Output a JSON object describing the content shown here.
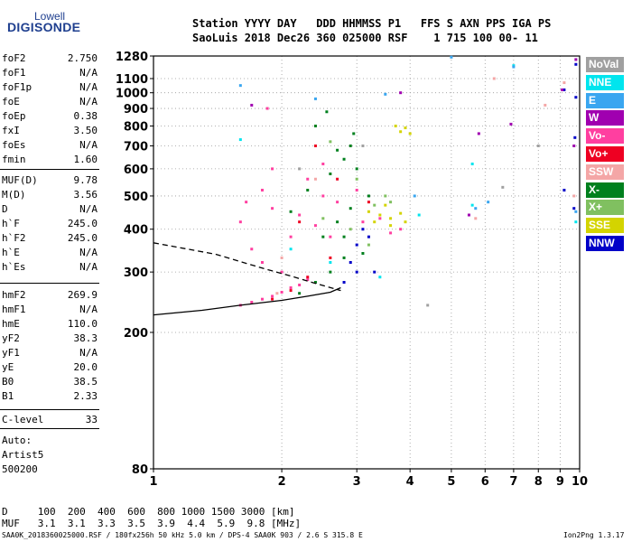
{
  "logo": {
    "top": "Lowell",
    "main": "DIGISONDE"
  },
  "header": {
    "line1": "Station YYYY DAY   DDD HHMMSS P1   FFS S AXN PPS IGA PS",
    "line2": "SaoLuis 2018 Dec26 360 025000 RSF    1 715 100 00- 11"
  },
  "params": [
    {
      "label": "foF2",
      "value": "2.750"
    },
    {
      "label": "foF1",
      "value": "N/A"
    },
    {
      "label": "foF1p",
      "value": "N/A"
    },
    {
      "label": "foE",
      "value": "N/A"
    },
    {
      "label": "foEp",
      "value": "0.38"
    },
    {
      "label": "fxI",
      "value": "3.50"
    },
    {
      "label": "foEs",
      "value": "N/A"
    },
    {
      "label": "fmin",
      "value": "1.60"
    },
    {
      "label": "MUF(D)",
      "value": "9.78"
    },
    {
      "label": "M(D)",
      "value": "3.56"
    },
    {
      "label": "D",
      "value": "N/A"
    },
    {
      "label": "h`F",
      "value": "245.0"
    },
    {
      "label": "h`F2",
      "value": "245.0"
    },
    {
      "label": "h`E",
      "value": "N/A"
    },
    {
      "label": "h`Es",
      "value": "N/A"
    },
    {
      "label": "hmF2",
      "value": "269.9"
    },
    {
      "label": "hmF1",
      "value": "N/A"
    },
    {
      "label": "hmE",
      "value": "110.0"
    },
    {
      "label": "yF2",
      "value": "38.3"
    },
    {
      "label": "yF1",
      "value": "N/A"
    },
    {
      "label": "yE",
      "value": "20.0"
    },
    {
      "label": "B0",
      "value": "38.5"
    },
    {
      "label": "B1",
      "value": "2.33"
    },
    {
      "label": "C-level",
      "value": "33"
    }
  ],
  "auto": {
    "label": "Auto:",
    "artist": "Artist5",
    "version": "500200"
  },
  "legend": [
    {
      "name": "NoVal",
      "color": "#a0a0a0"
    },
    {
      "name": "NNE",
      "color": "#00e5ee"
    },
    {
      "name": "E",
      "color": "#3aa6f0"
    },
    {
      "name": "W",
      "color": "#a000b0"
    },
    {
      "name": "Vo-",
      "color": "#ff3fa0"
    },
    {
      "name": "Vo+",
      "color": "#ee0022"
    },
    {
      "name": "SSW",
      "color": "#f4a6a6"
    },
    {
      "name": "X-",
      "color": "#00801e"
    },
    {
      "name": "X+",
      "color": "#80c060"
    },
    {
      "name": "SSE",
      "color": "#d4d400"
    },
    {
      "name": "NNW",
      "color": "#0000c8"
    }
  ],
  "muf_table": {
    "d_line": "D     100  200  400  600  800 1000 1500 3000 [km]",
    "muf_line": "MUF   3.1  3.1  3.3  3.5  3.9  4.4  5.9  9.8 [MHz]"
  },
  "footer": {
    "left": "SAA0K_2018360025000.RSF / 180fx256h 50 kHz 5.0 km / DPS-4 SAA0K 903 / 2.6 S 315.8 E",
    "right": "Ion2Png 1.3.17"
  },
  "chart_data": {
    "type": "scatter",
    "title": "",
    "xlabel": "",
    "ylabel": "",
    "x_scale": "log",
    "y_scale": "log",
    "xlim": [
      1,
      10
    ],
    "ylim": [
      80,
      1280
    ],
    "x_ticks": [
      1,
      2,
      3,
      4,
      5,
      6,
      7,
      8,
      9,
      10
    ],
    "y_ticks": [
      80,
      200,
      300,
      400,
      500,
      600,
      700,
      800,
      900,
      1000,
      1100,
      1280
    ],
    "grid": "dotted",
    "legend_position": "right",
    "series": [
      {
        "name": "Vo-",
        "color": "#ff3fa0",
        "points": [
          [
            1.6,
            240
          ],
          [
            1.7,
            245
          ],
          [
            1.8,
            250
          ],
          [
            1.9,
            255
          ],
          [
            2.0,
            262
          ],
          [
            2.1,
            270
          ],
          [
            2.2,
            275
          ],
          [
            2.3,
            285
          ],
          [
            2.0,
            300
          ],
          [
            1.8,
            320
          ],
          [
            1.7,
            350
          ],
          [
            1.6,
            420
          ],
          [
            1.65,
            480
          ],
          [
            1.8,
            520
          ],
          [
            1.9,
            460
          ],
          [
            2.2,
            440
          ],
          [
            2.4,
            410
          ],
          [
            2.6,
            380
          ],
          [
            2.5,
            500
          ],
          [
            2.7,
            480
          ],
          [
            3.1,
            420
          ],
          [
            3.4,
            430
          ],
          [
            3.6,
            390
          ],
          [
            3.8,
            400
          ],
          [
            2.1,
            380
          ],
          [
            1.9,
            600
          ],
          [
            1.85,
            900
          ],
          [
            2.3,
            560
          ],
          [
            2.5,
            620
          ],
          [
            3.0,
            520
          ]
        ]
      },
      {
        "name": "Vo+",
        "color": "#ee0022",
        "points": [
          [
            1.9,
            250
          ],
          [
            2.1,
            265
          ],
          [
            2.3,
            290
          ],
          [
            2.6,
            330
          ],
          [
            2.2,
            420
          ],
          [
            2.7,
            560
          ],
          [
            3.2,
            480
          ],
          [
            2.4,
            700
          ]
        ]
      },
      {
        "name": "X-",
        "color": "#00801e",
        "points": [
          [
            2.2,
            260
          ],
          [
            2.4,
            280
          ],
          [
            2.6,
            300
          ],
          [
            2.8,
            330
          ],
          [
            2.5,
            380
          ],
          [
            2.7,
            420
          ],
          [
            2.9,
            460
          ],
          [
            2.3,
            520
          ],
          [
            2.6,
            580
          ],
          [
            2.8,
            640
          ],
          [
            2.9,
            700
          ],
          [
            2.95,
            760
          ],
          [
            3.0,
            600
          ],
          [
            2.7,
            680
          ],
          [
            2.1,
            450
          ],
          [
            3.1,
            340
          ],
          [
            3.2,
            500
          ],
          [
            2.4,
            800
          ],
          [
            2.55,
            880
          ],
          [
            2.8,
            380
          ]
        ]
      },
      {
        "name": "X+",
        "color": "#80c060",
        "points": [
          [
            2.5,
            430
          ],
          [
            2.9,
            400
          ],
          [
            3.3,
            470
          ],
          [
            3.6,
            480
          ],
          [
            3.0,
            560
          ],
          [
            2.6,
            720
          ],
          [
            3.2,
            360
          ],
          [
            3.5,
            500
          ]
        ]
      },
      {
        "name": "SSE",
        "color": "#d4d400",
        "points": [
          [
            3.2,
            450
          ],
          [
            3.4,
            440
          ],
          [
            3.6,
            430
          ],
          [
            3.8,
            445
          ],
          [
            3.5,
            470
          ],
          [
            3.3,
            420
          ],
          [
            3.7,
            800
          ],
          [
            3.8,
            770
          ],
          [
            4.0,
            760
          ],
          [
            3.9,
            790
          ],
          [
            3.6,
            410
          ],
          [
            3.9,
            420
          ]
        ]
      },
      {
        "name": "NNW",
        "color": "#0000c8",
        "points": [
          [
            2.9,
            320
          ],
          [
            3.0,
            360
          ],
          [
            3.1,
            400
          ],
          [
            3.2,
            380
          ],
          [
            3.0,
            300
          ],
          [
            2.8,
            280
          ],
          [
            3.3,
            300
          ],
          [
            9.2,
            520
          ],
          [
            9.7,
            460
          ],
          [
            9.8,
            970
          ],
          [
            9.8,
            1210
          ],
          [
            9.2,
            1020
          ],
          [
            9.75,
            740
          ]
        ]
      },
      {
        "name": "NNE",
        "color": "#00e5ee",
        "points": [
          [
            2.1,
            350
          ],
          [
            2.6,
            320
          ],
          [
            3.4,
            290
          ],
          [
            4.2,
            440
          ],
          [
            5.6,
            470
          ],
          [
            5.6,
            620
          ],
          [
            1.6,
            730
          ],
          [
            7.0,
            1200
          ],
          [
            9.8,
            420
          ]
        ]
      },
      {
        "name": "E",
        "color": "#3aa6f0",
        "points": [
          [
            1.6,
            1050
          ],
          [
            2.4,
            960
          ],
          [
            3.5,
            990
          ],
          [
            4.1,
            500
          ],
          [
            5.7,
            460
          ],
          [
            6.1,
            480
          ],
          [
            7.0,
            1190
          ],
          [
            5.0,
            1270
          ],
          [
            9.8,
            450
          ]
        ]
      },
      {
        "name": "W",
        "color": "#a000b0",
        "points": [
          [
            1.7,
            920
          ],
          [
            3.8,
            1000
          ],
          [
            5.5,
            440
          ],
          [
            5.8,
            760
          ],
          [
            6.9,
            810
          ],
          [
            9.1,
            1020
          ],
          [
            9.8,
            1250
          ],
          [
            9.7,
            700
          ]
        ]
      },
      {
        "name": "SSW",
        "color": "#f4a6a6",
        "points": [
          [
            1.95,
            260
          ],
          [
            2.0,
            330
          ],
          [
            2.4,
            560
          ],
          [
            5.7,
            430
          ],
          [
            6.3,
            1100
          ],
          [
            8.3,
            920
          ],
          [
            9.2,
            1070
          ],
          [
            9.7,
            500
          ]
        ]
      },
      {
        "name": "NoVal",
        "color": "#a0a0a0",
        "points": [
          [
            2.2,
            600
          ],
          [
            3.1,
            700
          ],
          [
            4.4,
            240
          ],
          [
            6.6,
            530
          ],
          [
            8.0,
            700
          ]
        ]
      }
    ],
    "fit_curves": [
      {
        "style": "solid",
        "color": "#000000",
        "points": [
          [
            1.0,
            225
          ],
          [
            1.3,
            232
          ],
          [
            1.6,
            240
          ],
          [
            2.0,
            248
          ],
          [
            2.3,
            255
          ],
          [
            2.6,
            262
          ],
          [
            2.75,
            270
          ]
        ]
      },
      {
        "style": "dashed",
        "color": "#000000",
        "points": [
          [
            1.0,
            365
          ],
          [
            1.4,
            338
          ],
          [
            1.8,
            308
          ],
          [
            2.1,
            292
          ],
          [
            2.4,
            278
          ],
          [
            2.75,
            265
          ]
        ]
      }
    ]
  }
}
